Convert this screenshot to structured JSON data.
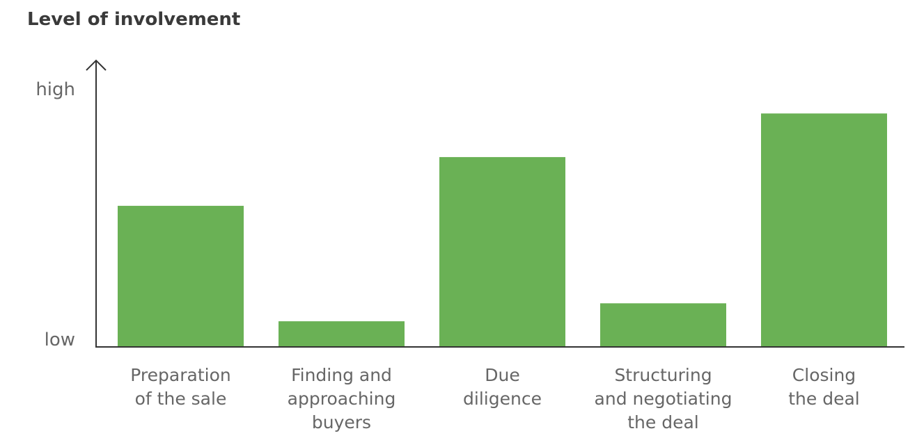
{
  "chart_data": {
    "type": "bar",
    "title": "Level of involvement",
    "categories": [
      [
        "Preparation",
        "of the sale"
      ],
      [
        "Finding and",
        "approaching",
        "buyers"
      ],
      [
        "Due",
        "diligence"
      ],
      [
        "Structuring",
        "and negotiating",
        "the deal"
      ],
      [
        "Closing",
        "the deal"
      ]
    ],
    "values": [
      0.55,
      0.1,
      0.74,
      0.17,
      0.91
    ],
    "ylim": [
      0,
      1
    ],
    "y_tick_labels": {
      "low": "low",
      "high": "high"
    },
    "grid": false,
    "bar_color": "#6ab155",
    "axis_color": "#333333"
  }
}
